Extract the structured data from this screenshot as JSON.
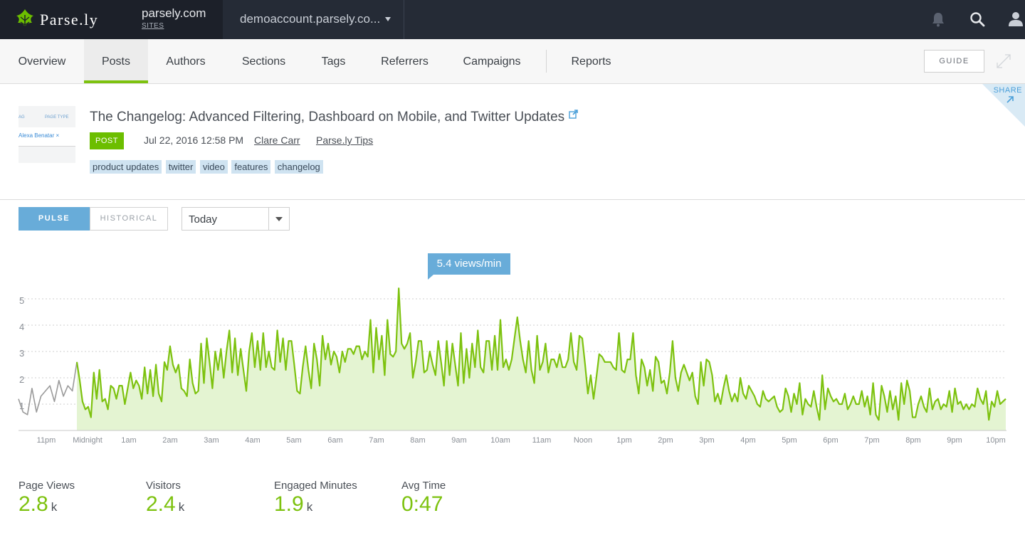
{
  "brand": {
    "name": "Parse.ly",
    "logo_icon": "parsely-leaf-icon",
    "site": "parsely.com",
    "site_sub": "SITES"
  },
  "account": {
    "name": "demoaccount.parsely.co..."
  },
  "top_icons": [
    "bell-icon",
    "search-icon",
    "user-icon"
  ],
  "nav": {
    "tabs": [
      "Overview",
      "Posts",
      "Authors",
      "Sections",
      "Tags",
      "Referrers",
      "Campaigns",
      "Reports"
    ],
    "active": "Posts",
    "guide": "GUIDE"
  },
  "post": {
    "thumb_label_a": "AG",
    "thumb_label_b": "PAGE TYPE",
    "thumb_chip": "Alexa Benatar ×",
    "title": "The Changelog: Advanced Filtering, Dashboard on Mobile, and Twitter Updates",
    "type": "POST",
    "date": "Jul 22, 2016 12:58 PM",
    "author": "Clare Carr",
    "section": "Parse.ly Tips",
    "tags": [
      "product updates",
      "twitter",
      "video",
      "features",
      "changelog"
    ],
    "share": "SHARE"
  },
  "controls": {
    "pulse": "PULSE",
    "historical": "HISTORICAL",
    "range": "Today"
  },
  "chart_data": {
    "type": "area",
    "tooltip": "5.4 views/min",
    "y_ticks": [
      1,
      2,
      3,
      4,
      5
    ],
    "ylim": [
      0,
      5.4
    ],
    "x_ticks": [
      "11pm",
      "Midnight",
      "1am",
      "2am",
      "3am",
      "4am",
      "5am",
      "6am",
      "7am",
      "8am",
      "9am",
      "10am",
      "11am",
      "Noon",
      "1pm",
      "2pm",
      "3pm",
      "4pm",
      "5pm",
      "6pm",
      "7pm",
      "8pm",
      "9pm",
      "10pm"
    ],
    "colors": {
      "today_line": "#7dc20f",
      "today_fill": "#e4f4d2",
      "previous_line": "#9a9a9a",
      "grid": "#cfcfcf"
    },
    "series": [
      {
        "values": [
          1.2,
          0.7,
          0.6,
          1.6,
          0.7,
          1.3,
          1.5,
          1.7,
          1.1,
          1.9,
          1.3,
          1.7,
          1.5,
          2.6
        ]
      },
      {
        "values": [
          2.6,
          1.9,
          1.1,
          0.8,
          0.9,
          0.5,
          2.2,
          1.2,
          2.3,
          1.1,
          1.2,
          0.8,
          1.7,
          1.6,
          1.2,
          1.7,
          1.7,
          1.0,
          1.6,
          2.2,
          1.6,
          1.9,
          1.7,
          1.2,
          2.4,
          1.4,
          2.3,
          1.3,
          2.5,
          1.4,
          1.1,
          2.6,
          2.3,
          3.2,
          2.5,
          2.2,
          2.5,
          1.6,
          1.5,
          1.3,
          2.7,
          1.8,
          1.4,
          1.5,
          3.3,
          1.8,
          3.5,
          2.6,
          1.6,
          3.0,
          2.3,
          3.1,
          2.0,
          3.0,
          3.8,
          2.2,
          3.5,
          2.1,
          3.1,
          2.3,
          1.5,
          3.0,
          3.7,
          2.4,
          3.4,
          2.3,
          3.7,
          2.4,
          3.0,
          2.4,
          2.3,
          3.8,
          2.6,
          3.5,
          2.3,
          3.4,
          3.4,
          2.5,
          1.5,
          1.4,
          2.4,
          3.2,
          2.3,
          1.6,
          3.3,
          2.7,
          1.7,
          3.6,
          2.7,
          3.3,
          2.5,
          3.0,
          2.8,
          2.2,
          3.0,
          2.6,
          3.1,
          3.1,
          2.9,
          3.2,
          3.2,
          2.7,
          3.0,
          2.8,
          4.2,
          2.2,
          3.9,
          2.7,
          3.6,
          2.1,
          4.2,
          2.9,
          2.8,
          3.0,
          5.4,
          3.3,
          3.1,
          3.3,
          3.7,
          2.0,
          2.6,
          3.4,
          3.4,
          2.2,
          2.3,
          3.0,
          2.5,
          2.1,
          3.4,
          2.6,
          1.7,
          3.4,
          2.1,
          3.3,
          2.5,
          1.7,
          3.7,
          1.8,
          3.1,
          2.0,
          3.3,
          2.4,
          3.8,
          2.4,
          2.2,
          3.4,
          3.4,
          2.3,
          3.6,
          2.3,
          4.2,
          2.4,
          2.7,
          2.3,
          2.7,
          3.5,
          4.3,
          3.4,
          2.7,
          2.2,
          3.4,
          2.3,
          1.8,
          3.6,
          2.3,
          2.6,
          3.3,
          2.2,
          2.7,
          2.7,
          2.4,
          2.9,
          2.4,
          2.4,
          2.7,
          3.7,
          2.6,
          2.3,
          3.6,
          3.5,
          2.5,
          1.4,
          2.1,
          1.2,
          2.0,
          2.9,
          2.8,
          2.6,
          2.6,
          2.6,
          2.4,
          2.3,
          3.7,
          2.3,
          2.2,
          2.7,
          2.7,
          3.7,
          2.1,
          1.4,
          2.7,
          2.4,
          1.7,
          2.3,
          1.5,
          2.8,
          2.6,
          1.8,
          1.9,
          1.4,
          2.2,
          3.4,
          2.0,
          1.5,
          2.2,
          2.5,
          2.2,
          1.9,
          2.2,
          1.3,
          1.0,
          2.6,
          1.7,
          2.7,
          2.6,
          2.1,
          1.1,
          1.4,
          1.0,
          1.6,
          2.1,
          1.5,
          1.1,
          1.4,
          1.1,
          2.0,
          1.4,
          1.2,
          1.7,
          1.5,
          1.3,
          1.0,
          0.9,
          1.5,
          1.2,
          1.1,
          1.2,
          1.3,
          0.9,
          0.7,
          0.8,
          1.6,
          1.3,
          0.7,
          1.4,
          1.0,
          1.8,
          0.6,
          1.2,
          1.0,
          0.9,
          1.5,
          0.9,
          0.4,
          2.1,
          0.8,
          1.6,
          1.3,
          1.1,
          1.2,
          1.0,
          1.0,
          1.4,
          0.8,
          1.0,
          1.3,
          1.0,
          1.0,
          1.5,
          0.9,
          1.3,
          0.6,
          1.8,
          0.6,
          0.4,
          1.7,
          1.3,
          0.7,
          1.5,
          0.8,
          1.3,
          0.4,
          1.8,
          1.0,
          1.9,
          1.5,
          0.5,
          0.5,
          1.0,
          1.3,
          0.9,
          0.7,
          1.6,
          0.8,
          1.1,
          1.2,
          0.8,
          1.0,
          0.9,
          1.5,
          0.7,
          1.6,
          1.0,
          1.1,
          0.8,
          1.0,
          0.8,
          1.0,
          0.9,
          1.6,
          1.2,
          1.0,
          1.5,
          0.4,
          1.1,
          0.9,
          1.5,
          1.0,
          1.1,
          1.2
        ]
      }
    ]
  },
  "stats": [
    {
      "label": "Page Views",
      "value": "2.8",
      "unit": "k"
    },
    {
      "label": "Visitors",
      "value": "2.4",
      "unit": "k"
    },
    {
      "label": "Engaged Minutes",
      "value": "1.9",
      "unit": "k"
    },
    {
      "label": "Avg Time",
      "value": "0:47",
      "unit": ""
    }
  ]
}
